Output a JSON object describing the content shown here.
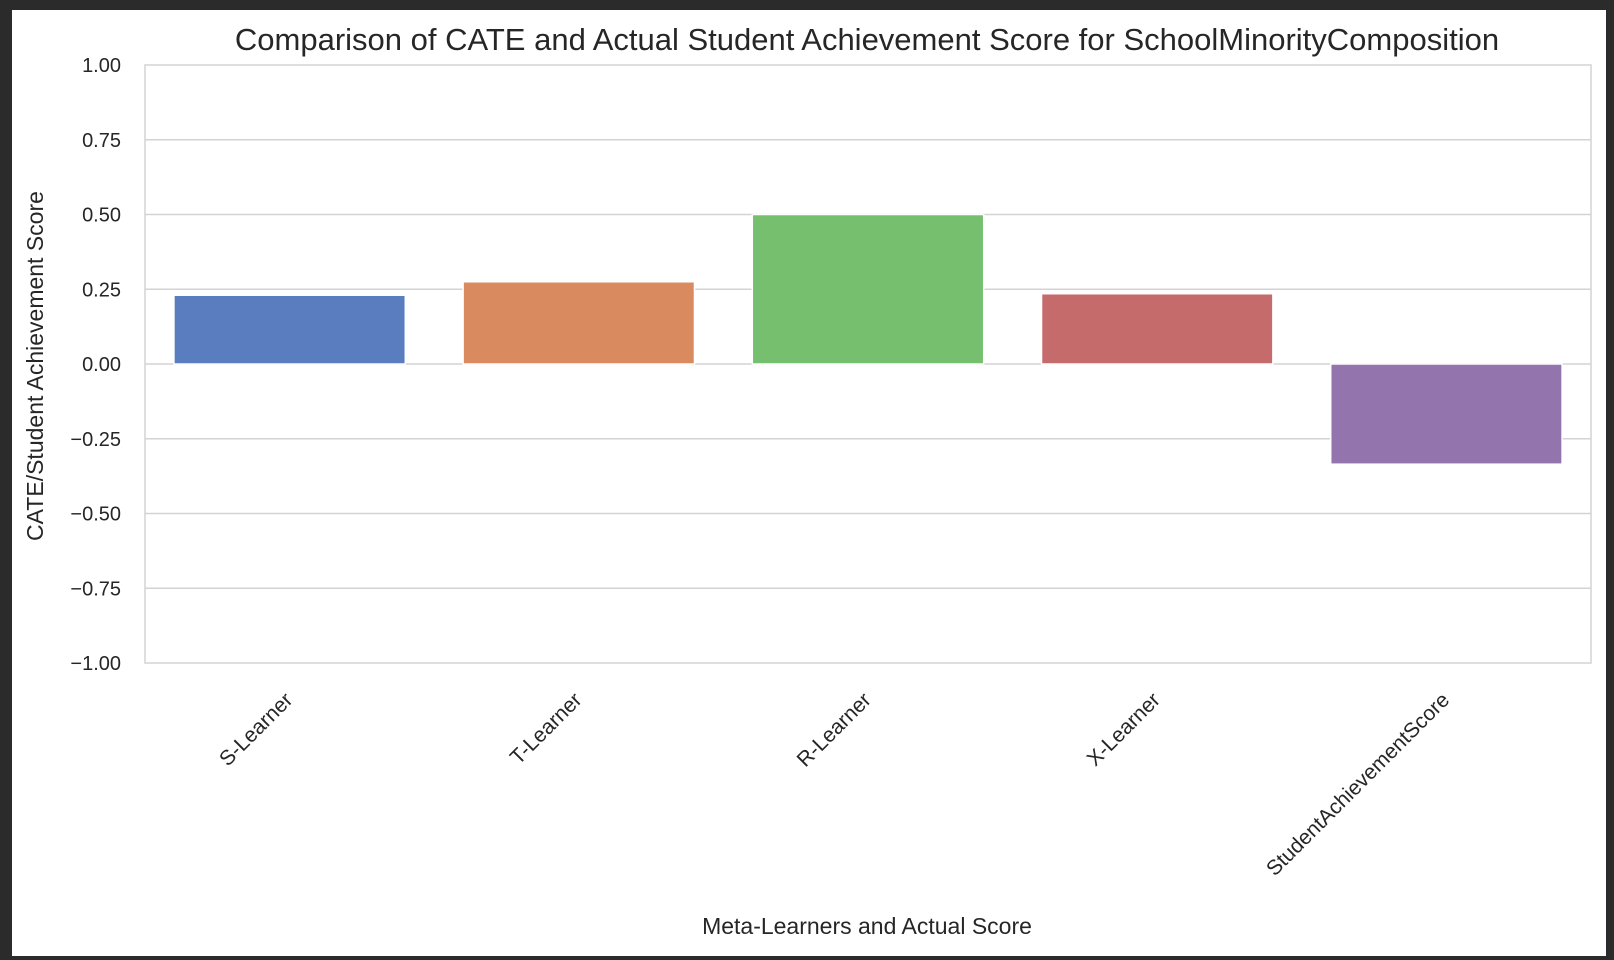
{
  "chart_data": {
    "type": "bar",
    "title": "Comparison of CATE and Actual Student Achievement Score for SchoolMinorityComposition",
    "xlabel": "Meta-Learners and Actual Score",
    "ylabel": "CATE/Student Achievement Score",
    "categories": [
      "S-Learner",
      "T-Learner",
      "R-Learner",
      "X-Learner",
      "StudentAchievementScore"
    ],
    "values": [
      0.23,
      0.275,
      0.5,
      0.235,
      -0.335
    ],
    "ylim": [
      -1.0,
      1.0
    ],
    "yticks": [
      "1.00",
      "0.75",
      "0.50",
      "0.25",
      "0.00",
      "−0.25",
      "−0.50",
      "−0.75",
      "−1.00"
    ],
    "ytick_values": [
      1.0,
      0.75,
      0.5,
      0.25,
      0.0,
      -0.25,
      -0.5,
      -0.75,
      -1.0
    ],
    "colors": [
      "#5a7dc0",
      "#d98a5e",
      "#75bf6e",
      "#c66b6b",
      "#9474ad"
    ],
    "grid": true,
    "legend": "none"
  }
}
